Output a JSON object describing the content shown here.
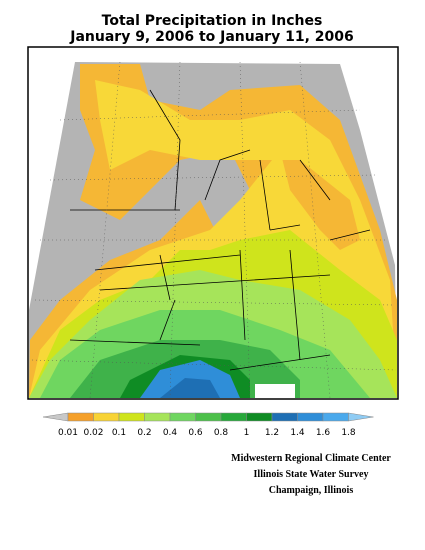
{
  "header": {
    "title": "Total Precipitation in Inches",
    "subtitle": "January 9, 2006 to January 11, 2006"
  },
  "legend": {
    "colors": [
      "#c8c8c8",
      "#f5a02a",
      "#f8d335",
      "#cfe41c",
      "#a6e45a",
      "#6fd660",
      "#4cc04a",
      "#27a83a",
      "#0f8c24",
      "#1e6fb4",
      "#2f8ed8",
      "#4aa9ec",
      "#8fccf4"
    ],
    "labels": [
      "0.01",
      "0.02",
      "0.1",
      "0.2",
      "0.4",
      "0.6",
      "0.8",
      "1",
      "1.2",
      "1.4",
      "1.6",
      "1.8"
    ]
  },
  "credits": [
    "Midwestern Regional Climate Center",
    "Illinois State Water Survey",
    "Champaign, Illinois"
  ]
}
